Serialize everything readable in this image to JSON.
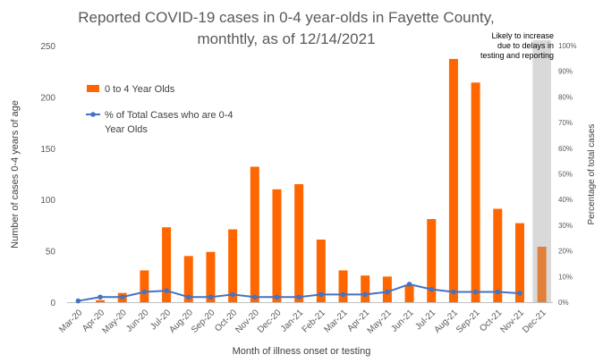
{
  "chart_data": {
    "type": "bar",
    "title": "Reported COVID-19 cases in 0-4 year-olds in Fayette County, monthtly, as of 12/14/2021",
    "xlabel": "Month of illness onset or testing",
    "ylabel": "Number of cases 0-4 years of age",
    "y2label": "Percentage of total cases",
    "categories": [
      "Mar-20",
      "Apr-20",
      "May-20",
      "Jun-20",
      "Jul-20",
      "Aug-20",
      "Sep-20",
      "Oct-20",
      "Nov-20",
      "Dec-20",
      "Jan-21",
      "Feb-21",
      "Mar-21",
      "Apr-21",
      "May-21",
      "Jun-21",
      "Jul-21",
      "Aug-21",
      "Sep-21",
      "Oct-21",
      "Nov-21",
      "Dec-21"
    ],
    "ylim": [
      0,
      250
    ],
    "yticks": [
      "0",
      "50",
      "100",
      "150",
      "200",
      "250"
    ],
    "y2lim": [
      0,
      100
    ],
    "y2ticks": [
      "0%",
      "10%",
      "20%",
      "30%",
      "40%",
      "50%",
      "60%",
      "70%",
      "80%",
      "90%",
      "100%"
    ],
    "series": [
      {
        "name": "0 to 4 Year Olds",
        "type": "bar",
        "color": "#ff6600",
        "values": [
          0,
          2,
          9,
          31,
          73,
          45,
          49,
          71,
          132,
          110,
          115,
          61,
          31,
          26,
          25,
          16,
          81,
          237,
          214,
          91,
          77,
          54
        ]
      },
      {
        "name": "% of Total Cases who are 0-4 Year Olds",
        "type": "line",
        "axis": "secondary",
        "color": "#4472c4",
        "values": [
          0.5,
          2,
          2,
          4,
          4.5,
          2,
          2,
          3,
          2,
          2,
          2,
          3,
          3,
          3,
          4,
          7,
          5,
          4,
          4,
          4,
          3.5,
          null
        ]
      }
    ],
    "highlight": {
      "category": "Dec-21",
      "color": "#d9d9d9",
      "bar_color": "#e0803a",
      "annotation": [
        "Likely to increase",
        "due to delays in",
        "testing and reporting"
      ]
    },
    "legend": "upper-left"
  }
}
